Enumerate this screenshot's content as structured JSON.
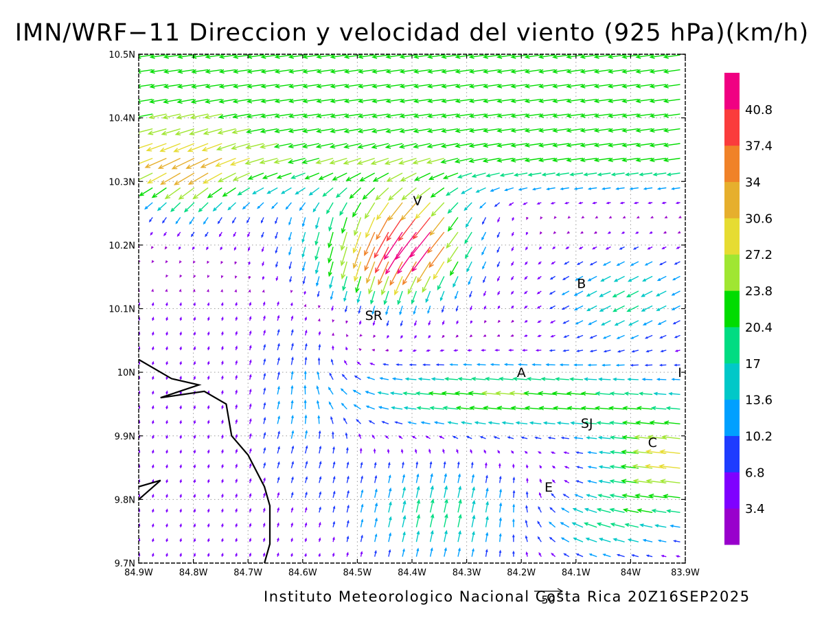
{
  "title": "IMN/WRF−11 Direccion y velocidad del viento (925 hPa)(km/h)",
  "footer": "Instituto Meteorologico Nacional Costa Rica 20Z16SEP2025",
  "reference_vector": {
    "label": "50",
    "value": 50
  },
  "map": {
    "lon_range": [
      -84.9,
      -83.9
    ],
    "lat_range": [
      9.7,
      10.5
    ],
    "lon_ticks": [
      "84.9W",
      "84.8W",
      "84.7W",
      "84.6W",
      "84.5W",
      "84.4W",
      "84.3W",
      "84.2W",
      "84.1W",
      "84W",
      "83.9W"
    ],
    "lat_ticks": [
      "9.7N",
      "9.8N",
      "9.9N",
      "10N",
      "10.1N",
      "10.2N",
      "10.3N",
      "10.4N",
      "10.5N"
    ],
    "grid": true,
    "places": [
      {
        "label": "V",
        "lon": -84.39,
        "lat": 10.27
      },
      {
        "label": "SR",
        "lon": -84.47,
        "lat": 10.09
      },
      {
        "label": "B",
        "lon": -84.09,
        "lat": 10.14
      },
      {
        "label": "A",
        "lon": -84.2,
        "lat": 10.0
      },
      {
        "label": "I",
        "lon": -83.91,
        "lat": 10.0
      },
      {
        "label": "SJ",
        "lon": -84.08,
        "lat": 9.92
      },
      {
        "label": "C",
        "lon": -83.96,
        "lat": 9.89
      },
      {
        "label": "E",
        "lon": -84.15,
        "lat": 9.82
      }
    ],
    "coastline": [
      [
        -84.9,
        10.02
      ],
      [
        -84.84,
        9.99
      ],
      [
        -84.79,
        9.98
      ],
      [
        -84.86,
        9.96
      ],
      [
        -84.78,
        9.97
      ],
      [
        -84.74,
        9.95
      ],
      [
        -84.73,
        9.9
      ],
      [
        -84.7,
        9.87
      ],
      [
        -84.67,
        9.82
      ],
      [
        -84.66,
        9.79
      ],
      [
        -84.66,
        9.73
      ],
      [
        -84.67,
        9.7
      ]
    ],
    "peninsula": [
      [
        -84.9,
        9.82
      ],
      [
        -84.86,
        9.83
      ],
      [
        -84.9,
        9.8
      ]
    ]
  },
  "colorbar": {
    "labels": [
      "3.4",
      "6.8",
      "10.2",
      "13.6",
      "17",
      "20.4",
      "23.8",
      "27.2",
      "30.6",
      "34",
      "37.4",
      "40.8"
    ],
    "colors": [
      "#9900cc",
      "#7f00ff",
      "#1e3cff",
      "#00a0ff",
      "#00c8c8",
      "#00dc82",
      "#00dc00",
      "#a0e632",
      "#e6dc32",
      "#e6af2d",
      "#f08228",
      "#fa3c3c",
      "#f00082"
    ]
  },
  "chart_data": {
    "type": "vector-field",
    "units": "km/h",
    "level": "925 hPa",
    "regimes": [
      "Northern band (10.3N-10.5N): easterly/northeasterly winds 20-27 km/h",
      "Cordillera north flank near V (10.15N-10.3N, 84.6W-84.3W): southward/southwestward winds 27-40 km/h",
      "Central belt (9.9N-10.0N, 84.5W-84.0W): easterly winds 17-28 km/h",
      "Southwest near coast (west of 84.6W, south of 10.1N): weak northerly winds 3-10 km/h",
      "East (east of 84.05W, 9.8N-9.95N): westward winds 25-34 km/h",
      "South (9.7N-9.85N, 84.5W-84.2W): northerly/north-northeast winds 13-24 km/h"
    ]
  }
}
